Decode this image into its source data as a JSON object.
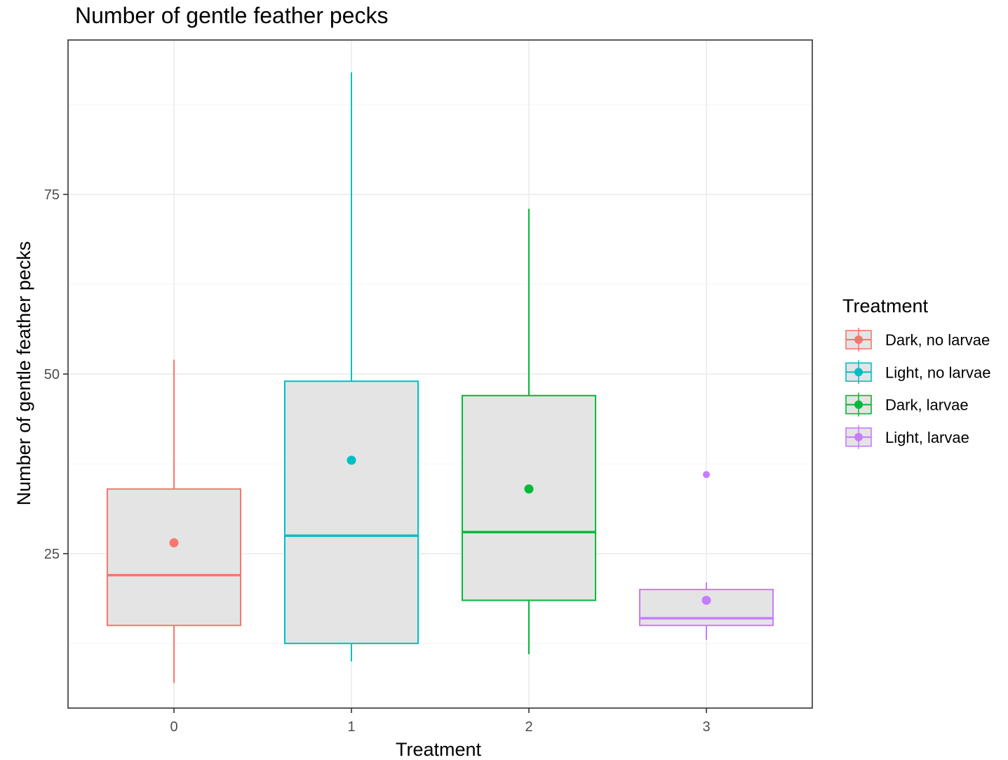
{
  "chart_data": {
    "type": "boxplot",
    "title": "Number of gentle feather pecks",
    "xlabel": "Treatment",
    "ylabel": "Number of gentle feather pecks",
    "categories": [
      "0",
      "1",
      "2",
      "3"
    ],
    "ylim": [
      3.5,
      96.5
    ],
    "y_ticks": [
      25,
      50,
      75
    ],
    "grid": true,
    "legend": {
      "title": "Treatment",
      "position": "right",
      "entries": [
        "Dark, no larvae",
        "Light, no larvae",
        "Dark, larvae",
        "Light, larvae"
      ]
    },
    "series": [
      {
        "name": "Dark, no larvae",
        "category": "0",
        "color": "#F8766D",
        "min": 7,
        "q1": 15,
        "median": 22,
        "q3": 34,
        "max": 52,
        "mean": 26.5,
        "outliers": []
      },
      {
        "name": "Light, no larvae",
        "category": "1",
        "color": "#00BFC4",
        "min": 10,
        "q1": 12.5,
        "median": 27.5,
        "q3": 49,
        "max": 92,
        "mean": 38,
        "outliers": []
      },
      {
        "name": "Dark, larvae",
        "category": "2",
        "color": "#00BA38",
        "min": 11,
        "q1": 18.5,
        "median": 28,
        "q3": 47,
        "max": 73,
        "mean": 34,
        "outliers": []
      },
      {
        "name": "Light, larvae",
        "category": "3",
        "color": "#C77CFF",
        "min": 13,
        "q1": 15,
        "median": 16,
        "q3": 20,
        "max": 21,
        "mean": 18.5,
        "outliers": [
          36
        ]
      }
    ]
  }
}
